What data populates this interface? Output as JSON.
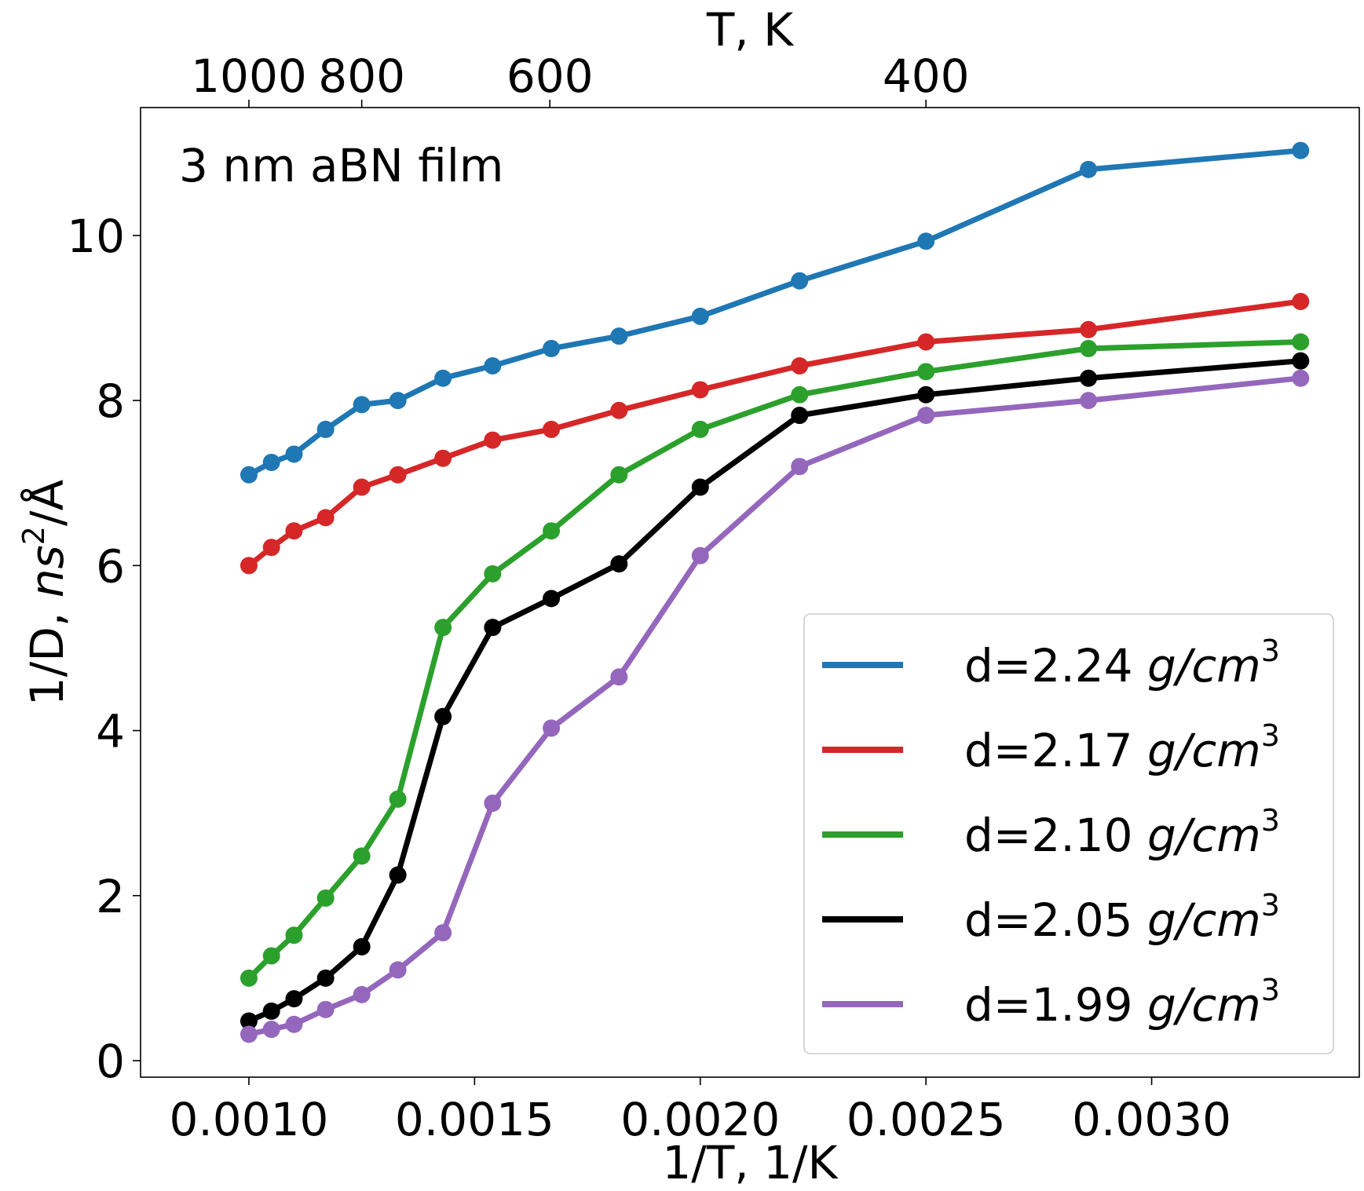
{
  "chart_data": {
    "type": "line",
    "annotation": "3 nm aBN film",
    "xlabel": "1/T, 1/K",
    "ylabel": "1/D, ns²/Å",
    "ylabel_parts": {
      "prefix": "1/D, ",
      "unit_italic": "ns",
      "sup": "2",
      "suffix": "/Å"
    },
    "top_xlabel": "T, K",
    "xlim": [
      0.00076,
      0.00346
    ],
    "ylim": [
      -0.2,
      11.55
    ],
    "x_ticks": [
      {
        "value": 0.001,
        "label": "0.0010"
      },
      {
        "value": 0.0015,
        "label": "0.0015"
      },
      {
        "value": 0.002,
        "label": "0.0020"
      },
      {
        "value": 0.0025,
        "label": "0.0025"
      },
      {
        "value": 0.003,
        "label": "0.0030"
      }
    ],
    "y_ticks": [
      {
        "value": 0,
        "label": "0"
      },
      {
        "value": 2,
        "label": "2"
      },
      {
        "value": 4,
        "label": "4"
      },
      {
        "value": 6,
        "label": "6"
      },
      {
        "value": 8,
        "label": "8"
      },
      {
        "value": 10,
        "label": "10"
      }
    ],
    "top_ticks": [
      {
        "value": 0.001,
        "label": "1000"
      },
      {
        "value": 0.00125,
        "label": "800"
      },
      {
        "value": 0.0016667,
        "label": "600"
      },
      {
        "value": 0.0025,
        "label": "400"
      }
    ],
    "x": [
      0.001,
      0.00105,
      0.0011,
      0.00117,
      0.00125,
      0.00133,
      0.00143,
      0.00154,
      0.00167,
      0.00182,
      0.002,
      0.00222,
      0.0025,
      0.00286,
      0.00333
    ],
    "series": [
      {
        "name": "d=2.24",
        "color": "#1f77b4",
        "values": [
          7.1,
          7.25,
          7.35,
          7.65,
          7.95,
          8.0,
          8.27,
          8.42,
          8.63,
          8.78,
          9.02,
          9.45,
          9.93,
          10.8,
          11.03
        ]
      },
      {
        "name": "d=2.17",
        "color": "#d62728",
        "values": [
          6.0,
          6.22,
          6.42,
          6.58,
          6.95,
          7.1,
          7.3,
          7.52,
          7.65,
          7.88,
          8.13,
          8.42,
          8.71,
          8.86,
          9.2
        ]
      },
      {
        "name": "d=2.10",
        "color": "#2ca02c",
        "values": [
          1.0,
          1.27,
          1.52,
          1.97,
          2.48,
          3.17,
          5.25,
          5.9,
          6.42,
          7.1,
          7.65,
          8.07,
          8.35,
          8.63,
          8.71
        ]
      },
      {
        "name": "d=2.05",
        "color": "#000000",
        "values": [
          0.48,
          0.6,
          0.75,
          1.0,
          1.38,
          2.25,
          4.17,
          5.25,
          5.6,
          6.02,
          6.95,
          7.82,
          8.07,
          8.27,
          8.48
        ]
      },
      {
        "name": "d=1.99",
        "color": "#9467bd",
        "values": [
          0.32,
          0.38,
          0.44,
          0.62,
          0.8,
          1.1,
          1.55,
          3.12,
          4.03,
          4.65,
          6.12,
          7.2,
          7.82,
          8.0,
          8.27
        ]
      }
    ],
    "legend": {
      "position": "lower-right",
      "unit_italic": "g/cm",
      "unit_sup": "3",
      "entries": [
        "d=2.24",
        "d=2.17",
        "d=2.10",
        "d=2.05",
        "d=1.99"
      ]
    },
    "grid": false
  }
}
